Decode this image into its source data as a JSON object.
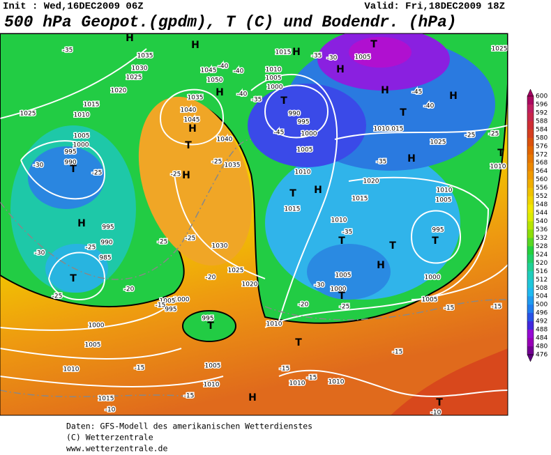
{
  "header": {
    "init": "Init : Wed,16DEC2009  06Z",
    "valid": "Valid: Fri,18DEC2009  18Z",
    "title": "500 hPa Geopot.(gpdm), T (C) und Bodendr. (hPa)"
  },
  "colorbar": {
    "labels": [
      600,
      596,
      592,
      588,
      584,
      580,
      576,
      572,
      568,
      564,
      560,
      556,
      552,
      548,
      544,
      540,
      536,
      532,
      528,
      524,
      520,
      516,
      512,
      508,
      504,
      500,
      496,
      492,
      488,
      484,
      480,
      476
    ]
  },
  "map_labels": [
    "1025",
    "1035",
    "1030",
    "1025",
    "1020",
    "1015",
    "1010",
    "1005",
    "1000",
    "995",
    "990",
    "-30",
    "-35",
    "-25",
    "995",
    "990",
    "985",
    "-30",
    "-25",
    "-25",
    "-20",
    "1000",
    "1005",
    "1010",
    "1015",
    "-10",
    "-15",
    "1040",
    "1045",
    "1040",
    "1035",
    "1045",
    "1050",
    "1035",
    "-40",
    "-40",
    "-40",
    "-45",
    "990",
    "995",
    "1000",
    "1005",
    "1010",
    "1015",
    "1020",
    "1015",
    "1010",
    "-35",
    "1005",
    "1000",
    "-30",
    "-25",
    "-20",
    "1005",
    "1000",
    "995",
    "1010",
    "1005",
    "1025",
    "-25",
    "-25",
    "1010",
    "1015",
    "1010",
    "-35",
    "-40",
    "-45",
    "1005",
    "1015",
    "-35",
    "-30",
    "1010",
    "1005",
    "1000",
    "-35",
    "1030",
    "1025",
    "1020",
    "-20",
    "-25",
    "-25",
    "-25",
    "-25",
    "1000",
    "1005",
    "995",
    "-15",
    "995",
    "1010",
    "1005",
    "1010",
    "-15",
    "-15",
    "1010",
    "1010",
    "-15",
    "-15",
    "-15",
    "-15",
    "-10",
    "1025"
  ],
  "pressure_centers": [
    "H",
    "H",
    "H",
    "H",
    "T",
    "H",
    "T",
    "H",
    "H",
    "H",
    "T",
    "H",
    "T",
    "T",
    "H",
    "T",
    "H",
    "T",
    "T",
    "H",
    "T",
    "T",
    "H",
    "T",
    "T",
    "T",
    "T",
    "H",
    "T"
  ],
  "footer": [
    "Daten: GFS-Modell des amerikanischen Wetterdienstes",
    "(C) Wetterzentrale",
    "www.wetterzentrale.de"
  ]
}
